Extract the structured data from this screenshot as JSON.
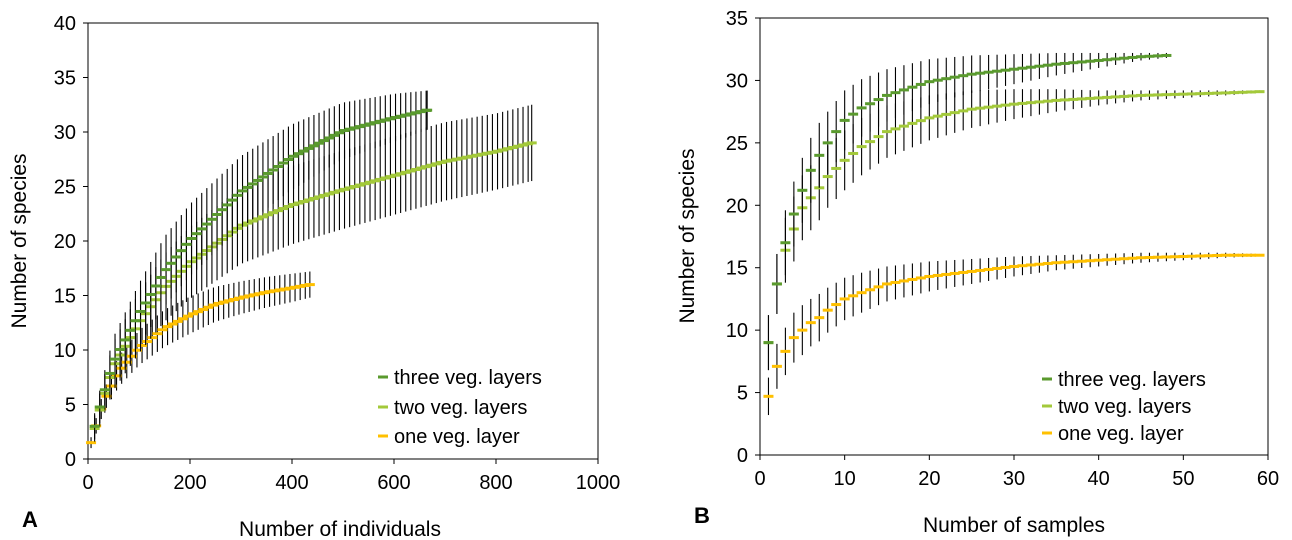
{
  "chart_data": [
    {
      "panel": "A",
      "type": "line",
      "xlabel": "Number of individuals",
      "ylabel": "Number of species",
      "xlim": [
        0,
        1000
      ],
      "ylim": [
        0,
        40
      ],
      "xticks": [
        "0",
        "200",
        "400",
        "600",
        "800",
        "1000"
      ],
      "yticks": [
        "0",
        "5",
        "10",
        "15",
        "20",
        "25",
        "30",
        "35",
        "40"
      ],
      "grid": false,
      "legend_position": "bottom-right",
      "series": [
        {
          "name": "three veg. layers",
          "color": "#5a9a2e",
          "x": [
            13,
            26,
            50,
            100,
            150,
            200,
            300,
            400,
            500,
            600,
            665
          ],
          "y": [
            3.0,
            5.3,
            8.9,
            13.3,
            17.2,
            20.1,
            24.5,
            27.7,
            30.1,
            31.3,
            32.0
          ],
          "err": [
            1.2,
            1.6,
            2.3,
            2.8,
            3.2,
            3.3,
            3.3,
            3.0,
            2.6,
            2.2,
            1.8
          ]
        },
        {
          "name": "two veg. layers",
          "color": "#a3c93a",
          "x": [
            13,
            26,
            50,
            100,
            150,
            200,
            300,
            400,
            500,
            600,
            700,
            800,
            870
          ],
          "y": [
            2.8,
            5.0,
            8.5,
            12.5,
            15.7,
            18.0,
            21.4,
            23.3,
            24.7,
            26.0,
            27.3,
            28.2,
            29.0
          ],
          "err": [
            1.2,
            1.6,
            2.2,
            2.8,
            3.1,
            3.3,
            3.5,
            3.6,
            3.6,
            3.6,
            3.6,
            3.5,
            3.5
          ]
        },
        {
          "name": "one veg. layer",
          "color": "#ffc000",
          "x": [
            6,
            30,
            60,
            100,
            150,
            200,
            250,
            300,
            350,
            400,
            435
          ],
          "y": [
            1.5,
            5.2,
            8.0,
            10.2,
            12.0,
            13.2,
            14.2,
            14.8,
            15.3,
            15.7,
            16.0
          ],
          "err": [
            0.5,
            1.0,
            1.4,
            1.6,
            1.7,
            1.7,
            1.6,
            1.5,
            1.4,
            1.3,
            1.2
          ]
        }
      ]
    },
    {
      "panel": "B",
      "type": "line",
      "xlabel": "Number of samples",
      "ylabel": "Number of species",
      "xlim": [
        0,
        60
      ],
      "ylim": [
        0,
        35
      ],
      "xticks": [
        "0",
        "10",
        "20",
        "30",
        "40",
        "50",
        "60"
      ],
      "yticks": [
        "0",
        "5",
        "10",
        "15",
        "20",
        "25",
        "30",
        "35"
      ],
      "grid": false,
      "legend_position": "bottom-right",
      "series": [
        {
          "name": "three veg. layers",
          "color": "#5a9a2e",
          "x": [
            1,
            2,
            3,
            4,
            5,
            6,
            7,
            8,
            10,
            12,
            15,
            20,
            25,
            30,
            35,
            40,
            45,
            48
          ],
          "y": [
            9.0,
            13.7,
            17.0,
            19.3,
            21.2,
            22.8,
            24.0,
            25.0,
            26.8,
            27.8,
            28.8,
            29.9,
            30.5,
            30.9,
            31.3,
            31.6,
            31.9,
            32.0
          ],
          "err": [
            2.2,
            2.4,
            2.6,
            2.6,
            2.6,
            2.6,
            2.6,
            2.5,
            2.4,
            2.3,
            2.1,
            1.8,
            1.5,
            1.2,
            0.9,
            0.6,
            0.3,
            0.2
          ]
        },
        {
          "name": "two veg. layers",
          "color": "#a3c93a",
          "x": [
            1,
            2,
            3,
            4,
            5,
            6,
            7,
            8,
            10,
            12,
            15,
            20,
            25,
            30,
            35,
            40,
            45,
            50,
            55,
            59
          ],
          "y": [
            9.0,
            13.7,
            16.4,
            18.1,
            19.8,
            20.6,
            21.4,
            22.3,
            23.6,
            24.7,
            25.9,
            27.0,
            27.7,
            28.1,
            28.4,
            28.6,
            28.8,
            28.9,
            29.0,
            29.1
          ],
          "err": [
            2.2,
            2.4,
            2.6,
            2.6,
            2.6,
            2.6,
            2.6,
            2.5,
            2.4,
            2.3,
            2.1,
            1.8,
            1.5,
            1.2,
            0.9,
            0.6,
            0.4,
            0.3,
            0.2,
            0.1
          ]
        },
        {
          "name": "one veg. layer",
          "color": "#ffc000",
          "x": [
            1,
            2,
            3,
            4,
            5,
            6,
            7,
            8,
            10,
            12,
            15,
            20,
            25,
            30,
            35,
            40,
            45,
            50,
            55,
            59
          ],
          "y": [
            4.7,
            7.1,
            8.3,
            9.4,
            10.0,
            10.6,
            11.0,
            11.6,
            12.5,
            13.0,
            13.7,
            14.3,
            14.7,
            15.1,
            15.4,
            15.6,
            15.8,
            15.9,
            16.0,
            16.0
          ],
          "err": [
            1.5,
            1.8,
            1.9,
            2.0,
            2.0,
            1.9,
            1.9,
            1.8,
            1.7,
            1.6,
            1.4,
            1.2,
            1.0,
            0.8,
            0.6,
            0.5,
            0.4,
            0.3,
            0.2,
            0.1
          ]
        }
      ]
    }
  ]
}
